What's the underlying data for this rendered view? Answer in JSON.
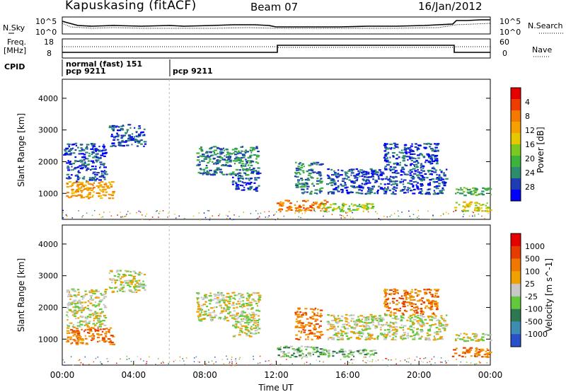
{
  "header": {
    "station": "Kapuskasing (fitACF)",
    "beam": "Beam 07",
    "date": "16/Jan/2012"
  },
  "noise_panel": {
    "left_label": "N.Sky",
    "right_label": "N.Search",
    "left_ticks": [
      "10^5",
      "10^0"
    ],
    "right_ticks": [
      "10^5",
      "10^0"
    ]
  },
  "freq_panel": {
    "label_line1": "Freq.",
    "label_line2": "[MHz]",
    "right_label": "Nave",
    "left_ticks": [
      "18",
      "8"
    ],
    "right_ticks": [
      "60",
      "0"
    ]
  },
  "cpid": {
    "label": "CPID",
    "entries": [
      {
        "t": 0.0,
        "line1": "normal (fast) 151",
        "line2": "pcp 9211"
      },
      {
        "t": 6.0,
        "line1": "",
        "line2": "pcp 9211"
      }
    ]
  },
  "time_axis": {
    "xlabel": "Time UT",
    "ticks": [
      "00:00",
      "04:00",
      "08:00",
      "12:00",
      "16:00",
      "20:00",
      "00:00"
    ]
  },
  "chart_data": [
    {
      "type": "heatmap",
      "quantity": "Power",
      "ylabel": "Slant Range [km]",
      "yticks": [
        1000,
        2000,
        3000,
        4000
      ],
      "ylim": [
        180,
        4600
      ],
      "xlim": [
        0,
        24
      ],
      "colorbar_label": "Power [dB]",
      "colorbar_ticks": [
        "4",
        "8",
        "12",
        "16",
        "20",
        "24",
        "28"
      ],
      "colors": [
        "#0000ff",
        "#1e3cb4",
        "#2d8c6e",
        "#3cb43c",
        "#7dc81e",
        "#e6c800",
        "#f5a000",
        "#f57800",
        "#f03c00",
        "#e60000"
      ],
      "regions": [
        {
          "t": [
            0.2,
            2.8
          ],
          "r": [
            850,
            1400
          ],
          "level": 6
        },
        {
          "t": [
            0.2,
            2.4
          ],
          "r": [
            1400,
            2600
          ],
          "level": 1
        },
        {
          "t": [
            2.6,
            4.6
          ],
          "r": [
            2500,
            3200
          ],
          "level": 1
        },
        {
          "t": [
            0.0,
            0.3
          ],
          "r": [
            2200,
            2600
          ],
          "level": 1
        },
        {
          "t": [
            7.5,
            11.0
          ],
          "r": [
            1600,
            2500
          ],
          "level": 2
        },
        {
          "t": [
            9.5,
            11.0
          ],
          "r": [
            1100,
            1700
          ],
          "level": 1
        },
        {
          "t": [
            12.0,
            14.8
          ],
          "r": [
            450,
            800
          ],
          "level": 7
        },
        {
          "t": [
            14.5,
            17.5
          ],
          "r": [
            450,
            700
          ],
          "level": 4
        },
        {
          "t": [
            13.0,
            14.5
          ],
          "r": [
            1000,
            2000
          ],
          "level": 2
        },
        {
          "t": [
            14.8,
            21.5
          ],
          "r": [
            1000,
            1800
          ],
          "level": 1
        },
        {
          "t": [
            18.0,
            21.0
          ],
          "r": [
            1800,
            2600
          ],
          "level": 1
        },
        {
          "t": [
            21.8,
            24.0
          ],
          "r": [
            450,
            750
          ],
          "level": 5
        },
        {
          "t": [
            21.8,
            24.0
          ],
          "r": [
            950,
            1200
          ],
          "level": 3
        }
      ]
    },
    {
      "type": "heatmap",
      "quantity": "Velocity",
      "ylabel": "Slant Range [km]",
      "yticks": [
        1000,
        2000,
        3000,
        4000
      ],
      "ylim": [
        180,
        4600
      ],
      "xlim": [
        0,
        24
      ],
      "colorbar_label": "Velocity [m s^-1]",
      "colorbar_ticks": [
        "1000",
        "500",
        "100",
        "25",
        "-25",
        "-100",
        "-500",
        "-1000"
      ],
      "colors": [
        "#2850c8",
        "#3c8cb4",
        "#2d7850",
        "#64c83c",
        "#c8c8c8",
        "#f0a000",
        "#f07800",
        "#e63c00",
        "#e60000"
      ],
      "regions": [
        {
          "t": [
            0.2,
            2.8
          ],
          "r": [
            850,
            1400
          ],
          "level": 6
        },
        {
          "t": [
            0.2,
            2.4
          ],
          "r": [
            1400,
            2600
          ],
          "level": 4
        },
        {
          "t": [
            2.6,
            4.6
          ],
          "r": [
            2500,
            3200
          ],
          "level": 4
        },
        {
          "t": [
            7.5,
            11.0
          ],
          "r": [
            1600,
            2500
          ],
          "level": 4
        },
        {
          "t": [
            9.5,
            11.0
          ],
          "r": [
            1100,
            1700
          ],
          "level": 4
        },
        {
          "t": [
            12.0,
            14.8
          ],
          "r": [
            450,
            800
          ],
          "level": 3
        },
        {
          "t": [
            14.5,
            17.5
          ],
          "r": [
            450,
            700
          ],
          "level": 3
        },
        {
          "t": [
            13.0,
            14.5
          ],
          "r": [
            1000,
            2000
          ],
          "level": 6
        },
        {
          "t": [
            14.8,
            21.5
          ],
          "r": [
            1000,
            1800
          ],
          "level": 4
        },
        {
          "t": [
            18.0,
            21.0
          ],
          "r": [
            1800,
            2600
          ],
          "level": 6
        },
        {
          "t": [
            21.8,
            24.0
          ],
          "r": [
            450,
            750
          ],
          "level": 6
        },
        {
          "t": [
            21.8,
            24.0
          ],
          "r": [
            950,
            1200
          ],
          "level": 4
        }
      ]
    }
  ]
}
